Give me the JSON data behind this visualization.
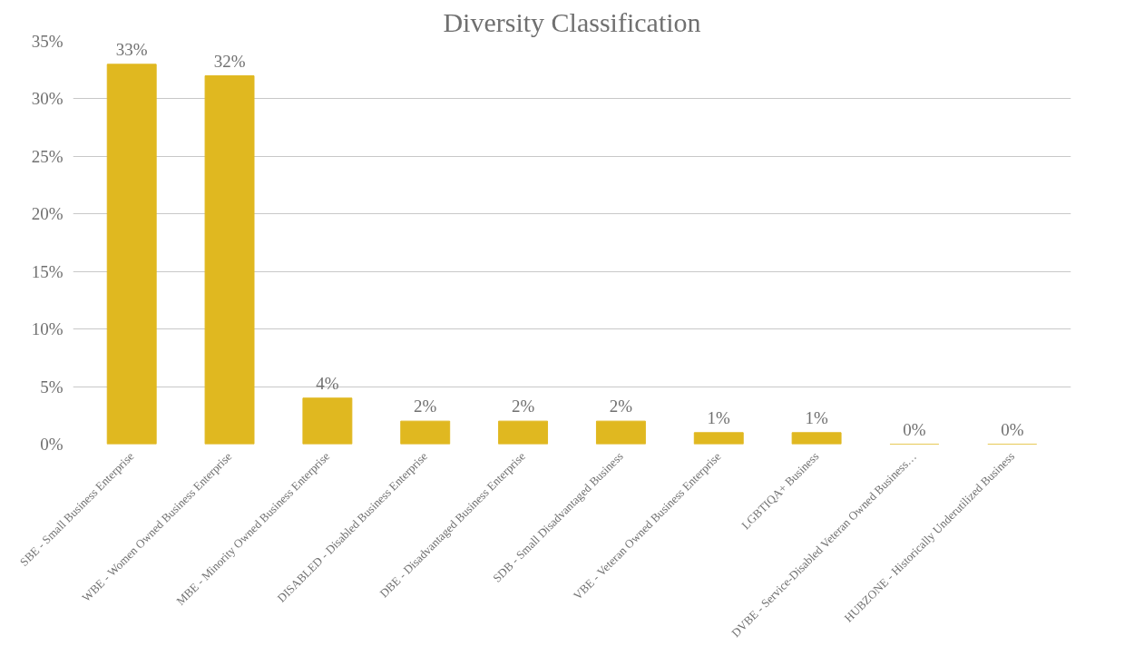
{
  "chart_data": {
    "type": "bar",
    "title": "Diversity Classification",
    "categories": [
      "SBE - Small Business Enterprise",
      "WBE - Women Owned Business Enterprise",
      "MBE - Minority Owned Business Enterprise",
      "DISABLED - Disabled Business Enterprise",
      "DBE - Disadvantaged Business Enterprise",
      "SDB - Small Disadvantaged Business",
      "VBE - Veteran Owned Business Enterprise",
      "LGBTIQA+ Business",
      "DVBE - Service-Disabled Veteran Owned Business…",
      "HUBZONE - Historically Underutilized Business"
    ],
    "values": [
      33,
      32,
      4,
      2,
      2,
      2,
      1,
      1,
      0,
      0
    ],
    "value_labels": [
      "33%",
      "32%",
      "4%",
      "2%",
      "2%",
      "2%",
      "1%",
      "1%",
      "0%",
      "0%"
    ],
    "color": "#e0b820",
    "ylim": [
      0,
      35
    ],
    "yticks": [
      {
        "value": 0,
        "label": "0%"
      },
      {
        "value": 5,
        "label": "5%"
      },
      {
        "value": 10,
        "label": "10%"
      },
      {
        "value": 15,
        "label": "15%"
      },
      {
        "value": 20,
        "label": "20%"
      },
      {
        "value": 25,
        "label": "25%"
      },
      {
        "value": 30,
        "label": "30%"
      },
      {
        "value": 35,
        "label": "35%"
      }
    ],
    "grid": "y"
  }
}
